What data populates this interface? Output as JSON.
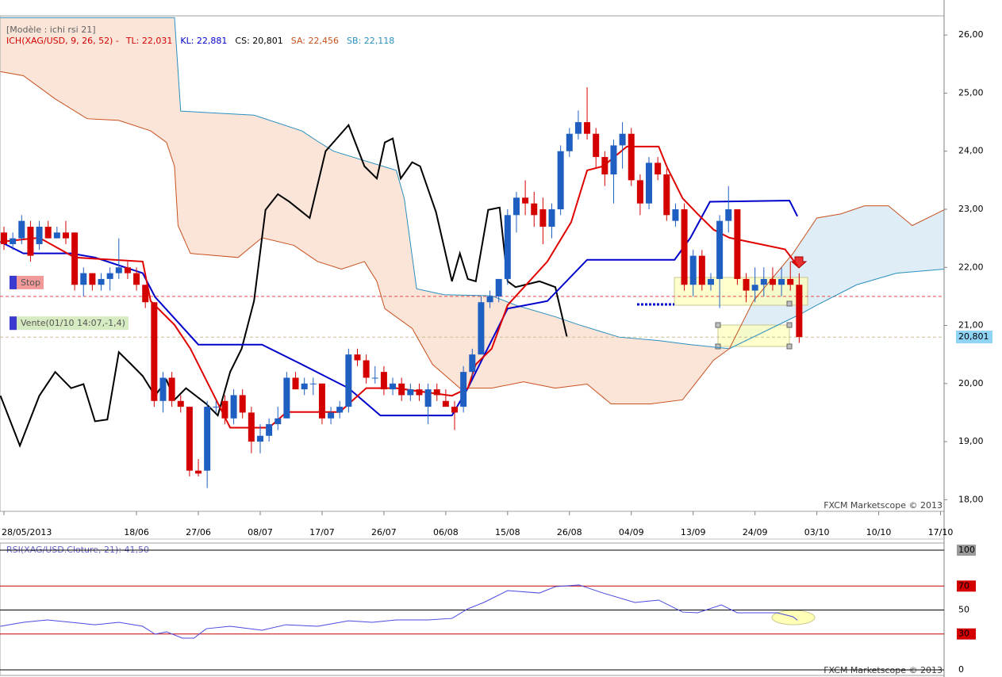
{
  "chart_data": [
    {
      "type": "candlestick",
      "model": "[Modèle : ichi rsi 21]",
      "legend": [
        {
          "text": "ICH(XAG/USD, 9, 26, 52) -",
          "color": "#d40000"
        },
        {
          "text": "TL: 22,031",
          "color": "#d40000"
        },
        {
          "text": "KL: 22,881",
          "color": "#0000cc"
        },
        {
          "text": "CS: 20,801",
          "color": "#000000"
        },
        {
          "text": "SA: 22,456",
          "color": "#c8501e"
        },
        {
          "text": "SB: 22,118",
          "color": "#2a8fbf"
        }
      ],
      "watermark": "FXCM Marketscope © 2013",
      "up_color": "#1f5fc1",
      "down_color": "#d40000",
      "xlim": [
        -0.45,
        106.4
      ],
      "ylim": [
        17.8,
        26.33
      ],
      "xticks": [
        {
          "value": 0,
          "label": "28/05/2013"
        },
        {
          "value": 15,
          "label": "18/06"
        },
        {
          "value": 22,
          "label": "27/06"
        },
        {
          "value": 29,
          "label": "08/07"
        },
        {
          "value": 36,
          "label": "17/07"
        },
        {
          "value": 43,
          "label": "26/07"
        },
        {
          "value": 50,
          "label": "06/08"
        },
        {
          "value": 57,
          "label": "15/08"
        },
        {
          "value": 64,
          "label": "26/08"
        },
        {
          "value": 71,
          "label": "04/09"
        },
        {
          "value": 78,
          "label": "13/09"
        },
        {
          "value": 85,
          "label": "24/09"
        },
        {
          "value": 92,
          "label": "03/10"
        },
        {
          "value": 99,
          "label": "10/10"
        },
        {
          "value": 106,
          "label": "17/10"
        }
      ],
      "yticks": [
        {
          "value": 18,
          "label": "18,00"
        },
        {
          "value": 19,
          "label": "19,00"
        },
        {
          "value": 20,
          "label": "20,00"
        },
        {
          "value": 21,
          "label": "21,00"
        },
        {
          "value": 22,
          "label": "22,00"
        },
        {
          "value": 23,
          "label": "23,00"
        },
        {
          "value": 24,
          "label": "24,00"
        },
        {
          "value": 25,
          "label": "25,00"
        },
        {
          "value": 26,
          "label": "26,00"
        }
      ],
      "grid": false,
      "x": [
        0,
        1,
        2,
        3,
        4,
        5,
        6,
        7,
        8,
        9,
        10,
        11,
        12,
        13,
        14,
        15,
        16,
        17,
        18,
        19,
        20,
        21,
        22,
        23,
        24,
        25,
        26,
        27,
        28,
        29,
        30,
        31,
        32,
        33,
        34,
        35,
        36,
        37,
        38,
        39,
        40,
        41,
        42,
        43,
        44,
        45,
        46,
        47,
        48,
        49,
        50,
        51,
        52,
        53,
        54,
        55,
        56,
        57,
        58,
        59,
        60,
        61,
        62,
        63,
        64,
        65,
        66,
        67,
        68,
        69,
        70,
        71,
        72,
        73,
        74,
        75,
        76,
        77,
        78,
        79,
        80,
        81,
        82,
        83,
        84,
        85,
        86,
        87,
        88,
        89,
        90
      ],
      "open": [
        22.6,
        22.4,
        22.5,
        22.7,
        22.4,
        22.7,
        22.5,
        22.6,
        22.6,
        21.7,
        21.9,
        21.7,
        21.8,
        21.9,
        22.0,
        21.9,
        21.7,
        21.4,
        19.7,
        20.1,
        19.7,
        19.6,
        18.5,
        18.5,
        19.6,
        19.7,
        19.4,
        19.8,
        19.5,
        19.0,
        19.1,
        19.3,
        19.4,
        20.1,
        19.9,
        20.0,
        20.0,
        19.4,
        19.5,
        19.6,
        20.5,
        20.4,
        20.1,
        20.2,
        19.9,
        20.0,
        19.8,
        19.9,
        19.6,
        19.9,
        19.7,
        19.6,
        19.6,
        20.2,
        20.5,
        21.4,
        21.5,
        21.8,
        22.9,
        23.2,
        23.1,
        23.0,
        22.7,
        23.0,
        24.0,
        24.3,
        24.5,
        24.3,
        23.9,
        23.6,
        24.1,
        24.3,
        23.5,
        23.1,
        23.8,
        23.6,
        22.8,
        23.0,
        21.7,
        22.2,
        21.7,
        21.8,
        22.8,
        23.0,
        21.8,
        21.6,
        21.7,
        21.8,
        21.7,
        21.8,
        21.7
      ],
      "high": [
        22.7,
        22.6,
        22.9,
        22.8,
        22.8,
        22.8,
        22.7,
        22.8,
        22.6,
        22.0,
        21.9,
        21.9,
        22.0,
        22.5,
        22.1,
        22.0,
        21.7,
        21.4,
        20.2,
        20.2,
        19.8,
        19.6,
        18.7,
        19.7,
        19.7,
        19.8,
        19.9,
        19.9,
        19.6,
        19.3,
        19.4,
        19.6,
        20.2,
        20.2,
        20.1,
        20.1,
        20.0,
        19.6,
        19.7,
        20.6,
        20.6,
        20.5,
        20.3,
        20.3,
        20.1,
        20.1,
        20.0,
        20.0,
        20.0,
        20.0,
        19.9,
        19.7,
        20.3,
        20.6,
        21.5,
        21.6,
        21.8,
        23.0,
        23.3,
        23.5,
        23.3,
        23.2,
        23.1,
        24.1,
        24.4,
        24.7,
        25.1,
        24.4,
        24.0,
        24.2,
        24.5,
        24.4,
        23.6,
        23.9,
        23.9,
        23.7,
        23.1,
        23.1,
        22.3,
        22.3,
        21.9,
        22.9,
        23.4,
        23.0,
        21.9,
        22.0,
        22.0,
        22.0,
        22.0,
        22.1,
        21.9
      ],
      "low": [
        22.3,
        22.3,
        22.4,
        22.1,
        22.3,
        22.5,
        22.5,
        22.4,
        21.6,
        21.5,
        21.6,
        21.6,
        21.6,
        21.8,
        21.8,
        21.6,
        21.3,
        19.6,
        19.5,
        19.6,
        19.5,
        18.4,
        18.4,
        18.2,
        19.5,
        19.3,
        19.3,
        19.4,
        18.8,
        18.8,
        19.0,
        19.2,
        19.4,
        19.9,
        19.8,
        19.8,
        19.3,
        19.3,
        19.4,
        19.5,
        20.3,
        20.0,
        20.0,
        19.8,
        19.8,
        19.7,
        19.7,
        19.7,
        19.3,
        19.7,
        19.6,
        19.2,
        19.5,
        20.1,
        20.5,
        21.3,
        21.4,
        21.7,
        22.6,
        22.9,
        22.7,
        22.4,
        22.5,
        22.9,
        23.9,
        24.2,
        24.2,
        23.7,
        23.4,
        23.1,
        23.7,
        23.4,
        22.9,
        23.0,
        23.5,
        22.8,
        22.7,
        21.6,
        21.5,
        21.6,
        21.6,
        21.3,
        22.6,
        21.7,
        21.4,
        21.4,
        21.5,
        21.6,
        21.5,
        21.6,
        20.7
      ],
      "close": [
        22.4,
        22.5,
        22.8,
        22.2,
        22.7,
        22.5,
        22.6,
        22.5,
        21.7,
        21.9,
        21.7,
        21.8,
        21.9,
        22.0,
        21.9,
        21.7,
        21.4,
        19.7,
        20.1,
        19.7,
        19.6,
        18.5,
        18.45,
        19.6,
        19.6,
        19.4,
        19.8,
        19.5,
        19.0,
        19.1,
        19.3,
        19.4,
        20.1,
        19.9,
        20.0,
        20.0,
        19.4,
        19.5,
        19.6,
        20.5,
        20.4,
        20.1,
        20.1,
        19.9,
        20.0,
        19.8,
        19.9,
        19.8,
        19.9,
        19.8,
        19.6,
        19.5,
        20.2,
        20.5,
        21.4,
        21.5,
        21.8,
        22.9,
        23.2,
        23.1,
        22.9,
        22.7,
        23.0,
        24.0,
        24.3,
        24.5,
        24.3,
        23.9,
        23.6,
        24.1,
        24.3,
        23.5,
        23.1,
        23.8,
        23.6,
        22.9,
        23.0,
        21.7,
        22.2,
        21.7,
        21.8,
        22.8,
        23.0,
        21.8,
        21.6,
        21.7,
        21.8,
        21.7,
        21.8,
        21.7,
        20.801
      ],
      "overlays": [
        {
          "color": "#2a8fbf",
          "x": [
            -0.4,
            19.3,
            20,
            28.3,
            33.7,
            35.5,
            37.3,
            44.4,
            45.3,
            46.7,
            49.8,
            55.2,
            57.9,
            62.4,
            65.1,
            69.6,
            74.1,
            77.7,
            82.1,
            90.2,
            92,
            96.5,
            101,
            106.4
          ],
          "values": [
            26.3,
            26.3,
            24.69,
            24.62,
            24.35,
            24.17,
            24.0,
            23.67,
            23.19,
            21.63,
            21.53,
            21.51,
            21.35,
            21.15,
            21.01,
            20.8,
            20.74,
            20.67,
            20.6,
            21.2,
            21.35,
            21.7,
            21.9,
            21.97
          ]
        },
        {
          "color": "#c8501e",
          "x": [
            -0.4,
            2.2,
            5.8,
            9.4,
            13,
            16.6,
            18.4,
            19.3,
            19.7,
            21.1,
            26.5,
            29.2,
            32.8,
            35.5,
            38.2,
            40.8,
            42.2,
            43.1,
            46.2,
            48.5,
            51.6,
            55.2,
            58.8,
            62.4,
            66,
            68.7,
            73.2,
            76.8,
            80.3,
            82.1,
            84.8,
            89.3,
            92,
            94.7,
            97.4,
            100.1,
            102.8,
            106.4
          ],
          "values": [
            25.37,
            25.3,
            24.9,
            24.56,
            24.53,
            24.35,
            24.15,
            23.74,
            22.72,
            22.24,
            22.17,
            22.51,
            22.38,
            22.1,
            21.97,
            22.1,
            21.76,
            21.29,
            20.95,
            20.33,
            19.92,
            19.92,
            20.03,
            19.92,
            19.99,
            19.65,
            19.65,
            19.72,
            20.4,
            20.6,
            21.42,
            22.24,
            22.85,
            22.92,
            23.06,
            23.06,
            22.72,
            22.99
          ]
        },
        {
          "color": "#000000",
          "x": [
            -0.4,
            1.8,
            4,
            5.8,
            7.6,
            9,
            10.3,
            11.7,
            13,
            14.4,
            15.7,
            17.1,
            18.4,
            19.3,
            20.6,
            22.9,
            24.2,
            25.6,
            26.9,
            28.3,
            29.6,
            31,
            32.3,
            34.6,
            36.4,
            39,
            40.8,
            42.2,
            43.1,
            44,
            44.9,
            46.2,
            47.1,
            48.9,
            50.7,
            51.6,
            52.5,
            53.4,
            54.8,
            56.1,
            57,
            57.9,
            60.6,
            62.4,
            63.7
          ],
          "values": [
            19.79,
            18.93,
            19.79,
            20.2,
            19.92,
            19.99,
            19.35,
            19.38,
            20.54,
            20.33,
            20.13,
            19.79,
            20.06,
            19.72,
            19.92,
            19.65,
            19.45,
            20.2,
            20.6,
            21.42,
            22.99,
            23.26,
            23.13,
            22.85,
            24.0,
            24.45,
            23.74,
            23.53,
            24.15,
            24.22,
            23.53,
            23.81,
            23.74,
            22.95,
            21.76,
            22.24,
            21.8,
            21.76,
            22.99,
            23.03,
            21.76,
            21.66,
            21.76,
            21.66,
            20.81
          ]
        },
        {
          "color": "#0000cc",
          "x": [
            -0.4,
            2.2,
            7.6,
            10.3,
            15.7,
            17.1,
            22,
            29.2,
            33.7,
            39,
            42.6,
            50.7,
            52.5,
            54.3,
            57,
            61.5,
            66,
            75.9,
            77.7,
            79.9,
            88.9,
            89.8
          ],
          "values": [
            22.44,
            22.24,
            22.24,
            22.17,
            21.9,
            21.49,
            20.67,
            20.67,
            20.33,
            19.92,
            19.45,
            19.45,
            19.92,
            20.47,
            21.29,
            21.42,
            22.13,
            22.13,
            22.51,
            23.13,
            23.15,
            22.88
          ]
        },
        {
          "color": "#e00000",
          "x": [
            -0.4,
            4,
            8,
            15.7,
            16.6,
            19.3,
            21.1,
            25.6,
            30,
            32,
            38,
            41,
            44.4,
            50.7,
            52.5,
            53.4,
            55.2,
            57,
            61.5,
            64.2,
            66,
            67.8,
            70.5,
            74.1,
            75,
            76.8,
            78.5,
            80.3,
            82.1,
            88.4,
            89.8
          ],
          "values": [
            22.44,
            22.51,
            22.17,
            22.1,
            21.42,
            21.01,
            20.6,
            19.24,
            19.24,
            19.51,
            19.51,
            19.92,
            19.92,
            19.79,
            19.92,
            20.33,
            20.6,
            21.35,
            22.1,
            22.78,
            23.67,
            23.74,
            24.08,
            24.08,
            23.74,
            23.19,
            22.92,
            22.65,
            22.51,
            22.31,
            22.03
          ]
        }
      ],
      "cloud_colors": {
        "bearish": "#fbe5d9",
        "bullish": "#deedf6"
      },
      "levels": [
        {
          "value": 21.5,
          "label": "Stop",
          "color": "#e8494f",
          "label_bg": "#f29a9a"
        },
        {
          "value": 20.8,
          "label": "Vente(01/10 14:07,-1,4)",
          "color": "#c9bd93",
          "label_bg": "#d6ebc1"
        }
      ],
      "last_price": {
        "value": 20.801,
        "label": "20,801",
        "bg": "#8fd3f5"
      }
    },
    {
      "type": "line",
      "title": "RSI(XAG/USD.Cloture, 21): 41,50",
      "watermark": "FXCM Marketscope © 2013",
      "color": "#4a4adf",
      "xlim": [
        -0.45,
        106.4
      ],
      "ylim": [
        0,
        100
      ],
      "yticks": [
        0,
        30,
        50,
        70,
        100
      ],
      "tick_line_colors": [
        "#000000",
        "#c80000",
        "#000000",
        "#c80000",
        "#000000"
      ],
      "tick_label_bg": [
        null,
        "#d40000",
        null,
        "#d40000",
        "#9a9a9a"
      ],
      "x": [
        -0.4,
        2.2,
        4.9,
        7.6,
        10.3,
        13,
        15.7,
        17.1,
        18.4,
        20.2,
        21.5,
        22.9,
        25.6,
        29.2,
        31.9,
        35.5,
        39,
        41.7,
        44.4,
        48,
        50.7,
        52.5,
        54.3,
        57,
        60.6,
        62.4,
        65.1,
        67.8,
        71.4,
        74.1,
        76.8,
        78.5,
        81.2,
        83,
        87.5,
        89.3,
        89.8
      ],
      "values": [
        36.4,
        39.7,
        41.7,
        39.7,
        37.7,
        39.7,
        36.4,
        29.8,
        31.8,
        26.5,
        26.5,
        34.4,
        36.4,
        33.1,
        37.7,
        36.4,
        41,
        39.7,
        41.7,
        41.7,
        43,
        51,
        56.3,
        66.2,
        64.2,
        69.5,
        70.9,
        64.2,
        56.3,
        58.3,
        48.3,
        47.7,
        54.3,
        47.7,
        47.7,
        44.4,
        41.5
      ]
    }
  ]
}
